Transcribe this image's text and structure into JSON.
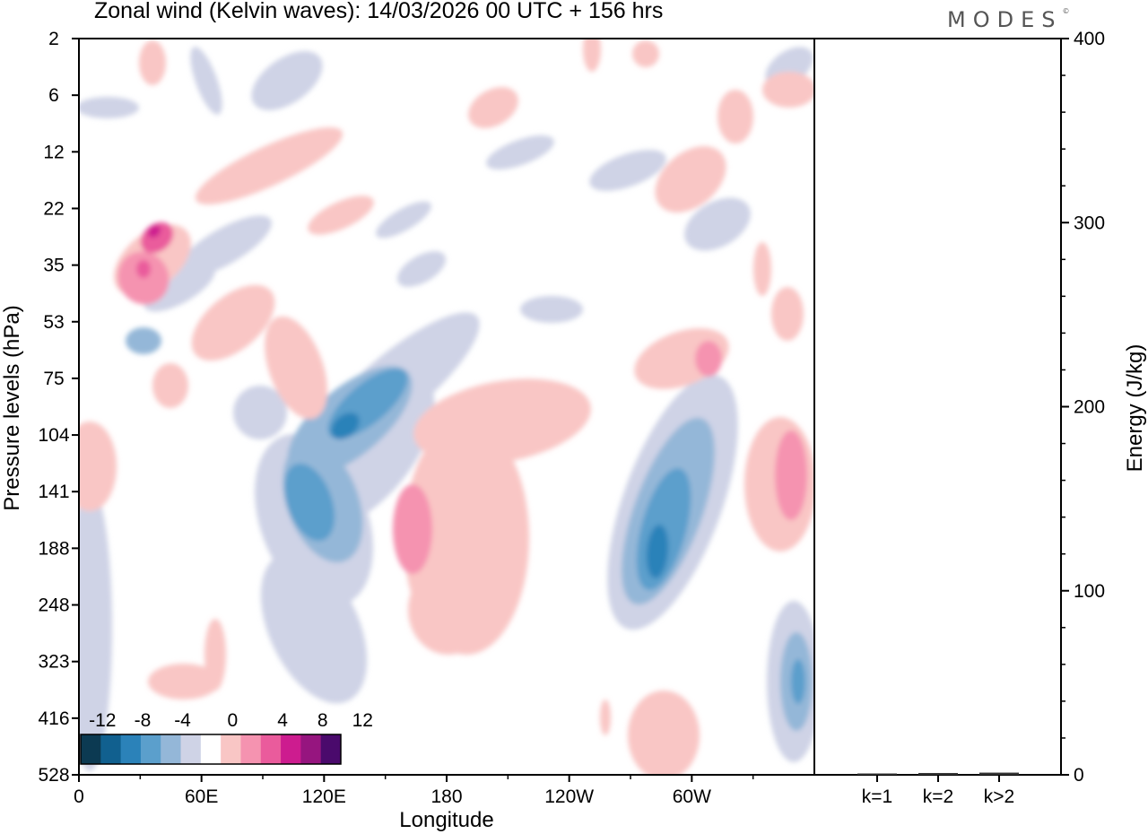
{
  "chart_data": [
    {
      "type": "heatmap",
      "title": "Zonal wind (Kelvin waves):  14/03/2026  00 UTC  + 156 hrs",
      "xlabel": "Longitude",
      "ylabel": "Pressure levels (hPa)",
      "x_ticks": [
        "0",
        "60E",
        "120E",
        "180",
        "120W",
        "60W"
      ],
      "y_ticks": [
        "2",
        "6",
        "12",
        "22",
        "35",
        "53",
        "75",
        "104",
        "141",
        "188",
        "248",
        "323",
        "416",
        "528"
      ],
      "colorbar": {
        "tick_labels": [
          "-12",
          "-8",
          "-4",
          "0",
          "4",
          "8",
          "12"
        ],
        "levels": [
          -14,
          -12,
          -10,
          -8,
          -6,
          -4,
          -2,
          2,
          4,
          6,
          8,
          10,
          12,
          14
        ],
        "colors": [
          "#0c3a52",
          "#11608f",
          "#2b82b9",
          "#5b9fcc",
          "#94b7d8",
          "#cfd3e6",
          "#ffffff",
          "#f9c6c5",
          "#f593b0",
          "#ea5b9c",
          "#cd1c8f",
          "#96157f",
          "#4a0a6c"
        ]
      },
      "features": [
        {
          "kind": "negative",
          "min": -12,
          "location": "upper-right, near 60W, 104-248 hPa"
        },
        {
          "kind": "negative",
          "min": -10,
          "location": "near 120E-150E, 75-188 hPa"
        },
        {
          "kind": "positive",
          "max": 6,
          "location": "near 180-150W, 75-323 hPa"
        },
        {
          "kind": "positive",
          "max": 10,
          "location": "near 30E, 22-35 hPa"
        }
      ]
    },
    {
      "type": "bar",
      "categories": [
        "k=1",
        "k=2",
        "k>2"
      ],
      "values": [
        0,
        0.5,
        0.7
      ],
      "ylabel": "Energy (J/kg)",
      "ylim": [
        0,
        400
      ],
      "y_ticks": [
        0,
        100,
        200,
        300,
        400
      ]
    }
  ],
  "brand": "MODES",
  "colors": {
    "negative": "#cfd3e6",
    "positive": "#f9c6c5",
    "axis": "#000000"
  }
}
